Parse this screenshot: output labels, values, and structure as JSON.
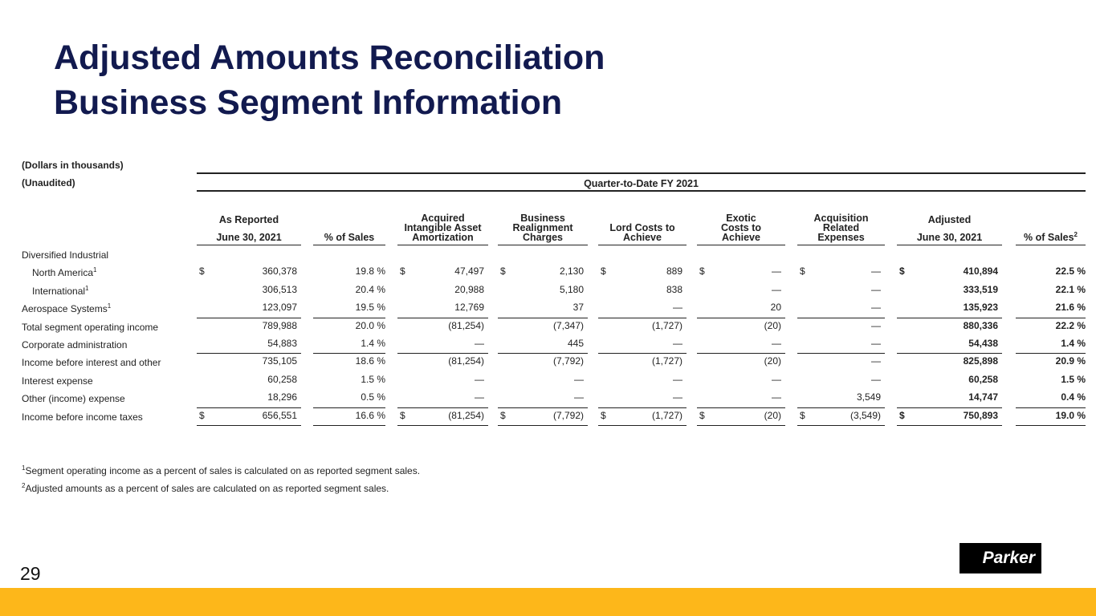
{
  "title": [
    "Adjusted Amounts Reconciliation",
    "Business Segment Information"
  ],
  "notes": [
    "(Dollars in thousands)",
    "(Unaudited)"
  ],
  "group_header": "Quarter-to-Date FY 2021",
  "columns": [
    {
      "top": "As Reported",
      "bottom": "June 30, 2021"
    },
    {
      "bottom": "% of Sales"
    },
    {
      "bottom": "Acquired Intangible Asset Amortization"
    },
    {
      "bottom": "Business Realignment Charges"
    },
    {
      "bottom": "Lord Costs to Achieve"
    },
    {
      "bottom": "Exotic Costs to Achieve"
    },
    {
      "bottom": "Acquisition Related Expenses"
    },
    {
      "top": "Adjusted",
      "bottom": "June 30, 2021"
    },
    {
      "bottom": "% of Sales",
      "sup": "2"
    }
  ],
  "rows": [
    {
      "label": "Diversified Industrial",
      "cells": []
    },
    {
      "label": "North America",
      "sup": "1",
      "cells": [
        [
          "$",
          "360,378"
        ],
        "19.8 %",
        [
          "$",
          "47,497"
        ],
        [
          "$",
          "2,130"
        ],
        [
          "$",
          "889"
        ],
        [
          "$",
          "—"
        ],
        [
          "$",
          "—"
        ],
        [
          "$",
          "410,894"
        ],
        "22.5 %"
      ]
    },
    {
      "label": "International",
      "sup": "1",
      "cells": [
        "306,513",
        "20.4 %",
        "20,988",
        "5,180",
        "838",
        "—",
        "—",
        "333,519",
        "22.1 %"
      ]
    },
    {
      "label": "Aerospace Systems",
      "sup": "1",
      "cells": [
        "123,097",
        "19.5 %",
        "12,769",
        "37",
        "—",
        "20",
        "—",
        "135,923",
        "21.6 %"
      ]
    },
    {
      "label": "Total segment operating income",
      "cells": [
        "789,988",
        "20.0 %",
        "(81,254)",
        "(7,347)",
        "(1,727)",
        "(20)",
        "—",
        "880,336",
        "22.2 %"
      ]
    },
    {
      "label": "Corporate administration",
      "cells": [
        "54,883",
        "1.4 %",
        "—",
        "445",
        "—",
        "—",
        "—",
        "54,438",
        "1.4 %"
      ]
    },
    {
      "label": "Income before interest and other",
      "cells": [
        "735,105",
        "18.6 %",
        "(81,254)",
        "(7,792)",
        "(1,727)",
        "(20)",
        "—",
        "825,898",
        "20.9 %"
      ]
    },
    {
      "label": "Interest expense",
      "cells": [
        "60,258",
        "1.5 %",
        "—",
        "—",
        "—",
        "—",
        "—",
        "60,258",
        "1.5 %"
      ]
    },
    {
      "label": "Other (income) expense",
      "cells": [
        "18,296",
        "0.5 %",
        "—",
        "—",
        "—",
        "—",
        "3,549",
        "14,747",
        "0.4 %"
      ]
    },
    {
      "label": "Income before income taxes",
      "cells": [
        [
          "$",
          "656,551"
        ],
        "16.6 %",
        [
          "$",
          "(81,254)"
        ],
        [
          "$",
          "(7,792)"
        ],
        [
          "$",
          "(1,727)"
        ],
        [
          "$",
          "(20)"
        ],
        [
          "$",
          "(3,549)"
        ],
        [
          "$",
          "750,893"
        ],
        "19.0 %"
      ]
    }
  ],
  "footnotes": [
    {
      "sup": "1",
      "text": "Segment operating income as a percent of sales is calculated on as reported segment sales."
    },
    {
      "sup": "2",
      "text": "Adjusted amounts as a percent of sales are calculated on as reported segment sales."
    }
  ],
  "page_number": "29",
  "logo": "Parker"
}
